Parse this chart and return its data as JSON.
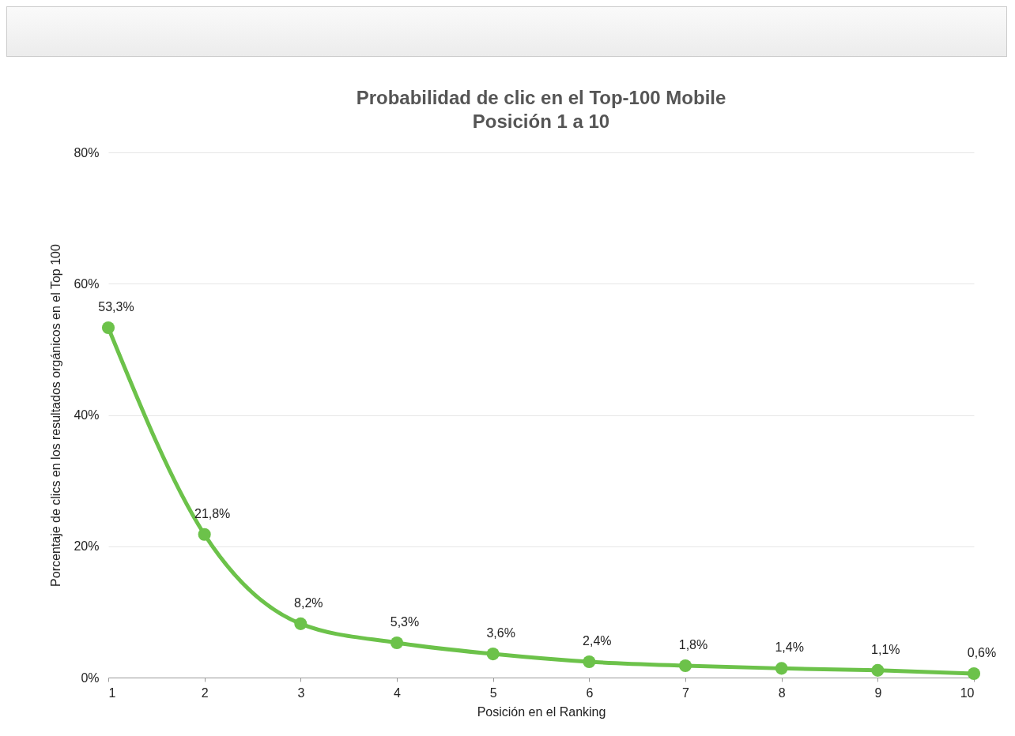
{
  "chart_data": {
    "type": "line",
    "title": [
      "Probabilidad de clic en el Top-100 Mobile",
      "Posición 1 a 10"
    ],
    "xlabel": "Posición en el Ranking",
    "ylabel": "Porcentaje de clics en los resultados orgánicos en el Top 100",
    "x": [
      1,
      2,
      3,
      4,
      5,
      6,
      7,
      8,
      9,
      10
    ],
    "series": [
      {
        "color": "#6cc24a",
        "values": [
          53.3,
          21.8,
          8.2,
          5.3,
          3.6,
          2.4,
          1.8,
          1.4,
          1.1,
          0.6
        ],
        "value_labels": [
          "53,3%",
          "21,8%",
          "8,2%",
          "5,3%",
          "3,6%",
          "2,4%",
          "1,8%",
          "1,4%",
          "1,1%",
          "0,6%"
        ]
      }
    ],
    "xlim": [
      1,
      10
    ],
    "xticks": [
      1,
      2,
      3,
      4,
      5,
      6,
      7,
      8,
      9,
      10
    ],
    "ylim": [
      0,
      80
    ],
    "yticks": [
      {
        "value": 0,
        "label": "0%"
      },
      {
        "value": 20,
        "label": "20%"
      },
      {
        "value": 40,
        "label": "40%"
      },
      {
        "value": 60,
        "label": "60%"
      },
      {
        "value": 80,
        "label": "80%"
      }
    ],
    "grid": "y",
    "marker": "circle",
    "line_style": "solid"
  }
}
